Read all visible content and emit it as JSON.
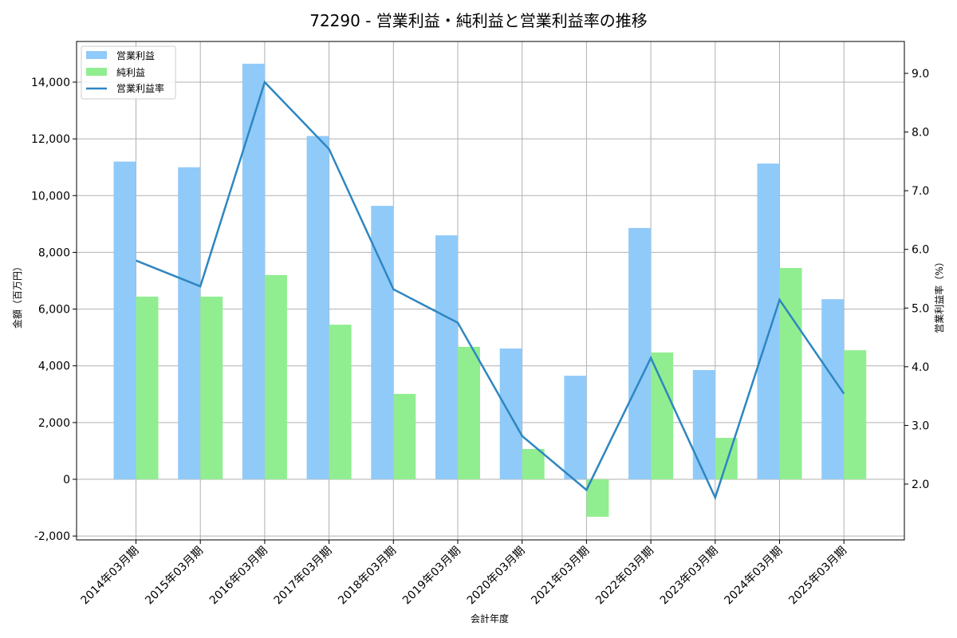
{
  "title": "72290 - 営業利益・純利益と営業利益率の推移",
  "chart_data": {
    "type": "bar",
    "title": "72290 - 営業利益・純利益と営業利益率の推移",
    "xlabel": "会計年度",
    "ylabel": "金額（百万円）",
    "ylabel_right": "営業利益率（%）",
    "categories": [
      "2014年03月期",
      "2015年03月期",
      "2016年03月期",
      "2017年03月期",
      "2018年03月期",
      "2019年03月期",
      "2020年03月期",
      "2021年03月期",
      "2022年03月期",
      "2023年03月期",
      "2024年03月期",
      "2025年03月期"
    ],
    "series": [
      {
        "name": "営業利益",
        "type": "bar",
        "axis": "left",
        "color": "#90caf9",
        "values": [
          11200,
          11000,
          14650,
          12100,
          9640,
          8600,
          4610,
          3650,
          8860,
          3850,
          11130,
          6350
        ]
      },
      {
        "name": "純利益",
        "type": "bar",
        "axis": "left",
        "color": "#90ee90",
        "values": [
          6440,
          6440,
          7200,
          5450,
          3010,
          4670,
          1070,
          -1320,
          4470,
          1460,
          7450,
          4550
        ]
      },
      {
        "name": "営業利益率",
        "type": "line",
        "axis": "right",
        "color": "#2e86c1",
        "values": [
          5.81,
          5.37,
          8.85,
          7.71,
          5.32,
          4.75,
          2.82,
          1.9,
          4.15,
          1.77,
          5.14,
          3.54
        ]
      }
    ],
    "ylim": [
      -2200,
      15500
    ],
    "ylim_right": [
      1.35,
      9.55
    ],
    "yticks": [
      -2000,
      0,
      2000,
      4000,
      6000,
      8000,
      10000,
      12000,
      14000
    ],
    "ytick_labels": [
      "-2,000",
      "0",
      "2,000",
      "4,000",
      "6,000",
      "8,000",
      "10,000",
      "12,000",
      "14,000"
    ],
    "yticks_right": [
      2.0,
      3.0,
      4.0,
      5.0,
      6.0,
      7.0,
      8.0,
      9.0
    ],
    "ytick_labels_right": [
      "2.0",
      "3.0",
      "4.0",
      "5.0",
      "6.0",
      "7.0",
      "8.0",
      "9.0"
    ],
    "grid": true,
    "legend_position": "upper left"
  }
}
